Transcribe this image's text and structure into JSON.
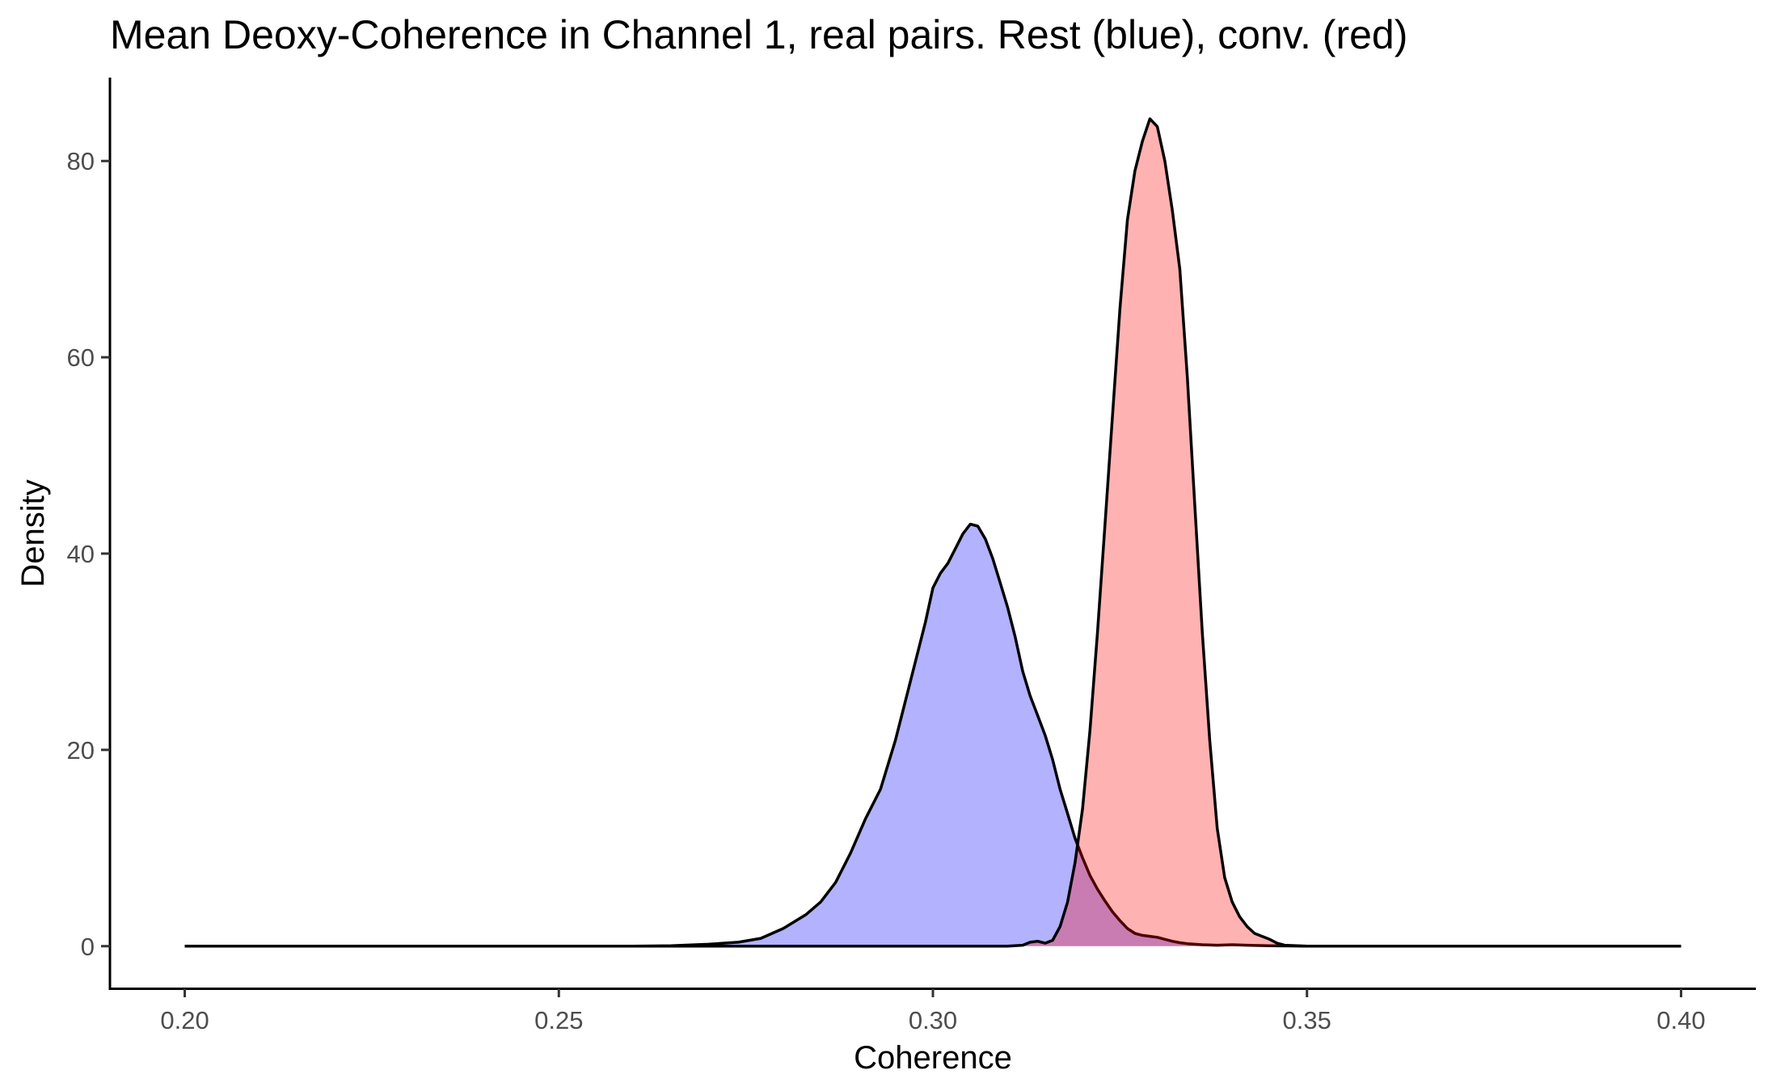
{
  "chart_data": {
    "type": "area",
    "title": "Mean Deoxy-Coherence in Channel 1, real pairs. Rest (blue), conv. (red)",
    "xlabel": "Coherence",
    "ylabel": "Density",
    "xlim": [
      0.19,
      0.41
    ],
    "ylim": [
      -4.3,
      88.5
    ],
    "xticks": [
      {
        "value": 0.2,
        "label": "0.20"
      },
      {
        "value": 0.25,
        "label": "0.25"
      },
      {
        "value": 0.3,
        "label": "0.30"
      },
      {
        "value": 0.35,
        "label": "0.35"
      },
      {
        "value": 0.4,
        "label": "0.40"
      }
    ],
    "yticks": [
      {
        "value": 0,
        "label": "0"
      },
      {
        "value": 20,
        "label": "20"
      },
      {
        "value": 40,
        "label": "40"
      },
      {
        "value": 60,
        "label": "60"
      },
      {
        "value": 80,
        "label": "80"
      }
    ],
    "grid": false,
    "legend": "none",
    "series": [
      {
        "color": "#0000ff",
        "fill_opacity": 0.3,
        "points": [
          [
            0.2,
            0.0
          ],
          [
            0.22,
            0.0
          ],
          [
            0.24,
            0.0
          ],
          [
            0.26,
            0.0
          ],
          [
            0.265,
            0.05
          ],
          [
            0.27,
            0.2
          ],
          [
            0.274,
            0.4
          ],
          [
            0.277,
            0.8
          ],
          [
            0.28,
            1.8
          ],
          [
            0.283,
            3.2
          ],
          [
            0.285,
            4.5
          ],
          [
            0.287,
            6.5
          ],
          [
            0.289,
            9.5
          ],
          [
            0.291,
            13.0
          ],
          [
            0.293,
            16.0
          ],
          [
            0.295,
            21.0
          ],
          [
            0.297,
            27.0
          ],
          [
            0.299,
            33.0
          ],
          [
            0.3,
            36.5
          ],
          [
            0.301,
            38.0
          ],
          [
            0.302,
            39.0
          ],
          [
            0.303,
            40.5
          ],
          [
            0.304,
            42.0
          ],
          [
            0.305,
            43.0
          ],
          [
            0.306,
            42.8
          ],
          [
            0.307,
            41.5
          ],
          [
            0.308,
            39.5
          ],
          [
            0.309,
            37.0
          ],
          [
            0.31,
            34.5
          ],
          [
            0.311,
            31.5
          ],
          [
            0.312,
            28.0
          ],
          [
            0.313,
            25.5
          ],
          [
            0.314,
            23.5
          ],
          [
            0.315,
            21.5
          ],
          [
            0.316,
            19.0
          ],
          [
            0.317,
            16.0
          ],
          [
            0.318,
            13.5
          ],
          [
            0.319,
            11.0
          ],
          [
            0.32,
            9.0
          ],
          [
            0.321,
            7.2
          ],
          [
            0.322,
            5.8
          ],
          [
            0.323,
            4.6
          ],
          [
            0.324,
            3.5
          ],
          [
            0.325,
            2.6
          ],
          [
            0.326,
            1.8
          ],
          [
            0.327,
            1.3
          ],
          [
            0.328,
            1.1
          ],
          [
            0.329,
            1.0
          ],
          [
            0.33,
            0.9
          ],
          [
            0.331,
            0.7
          ],
          [
            0.332,
            0.5
          ],
          [
            0.333,
            0.35
          ],
          [
            0.334,
            0.25
          ],
          [
            0.336,
            0.15
          ],
          [
            0.338,
            0.1
          ],
          [
            0.34,
            0.15
          ],
          [
            0.342,
            0.1
          ],
          [
            0.345,
            0.05
          ],
          [
            0.35,
            0.0
          ],
          [
            0.37,
            0.0
          ],
          [
            0.4,
            0.0
          ]
        ]
      },
      {
        "color": "#ff0000",
        "fill_opacity": 0.3,
        "points": [
          [
            0.2,
            0.0
          ],
          [
            0.25,
            0.0
          ],
          [
            0.3,
            0.0
          ],
          [
            0.31,
            0.0
          ],
          [
            0.312,
            0.1
          ],
          [
            0.313,
            0.4
          ],
          [
            0.314,
            0.5
          ],
          [
            0.315,
            0.3
          ],
          [
            0.316,
            0.6
          ],
          [
            0.317,
            2.0
          ],
          [
            0.318,
            4.5
          ],
          [
            0.319,
            8.5
          ],
          [
            0.32,
            14.0
          ],
          [
            0.321,
            22.0
          ],
          [
            0.322,
            32.0
          ],
          [
            0.323,
            43.0
          ],
          [
            0.324,
            54.0
          ],
          [
            0.325,
            65.0
          ],
          [
            0.326,
            74.0
          ],
          [
            0.327,
            79.0
          ],
          [
            0.328,
            82.0
          ],
          [
            0.329,
            84.3
          ],
          [
            0.33,
            83.5
          ],
          [
            0.331,
            80.0
          ],
          [
            0.332,
            75.0
          ],
          [
            0.333,
            69.0
          ],
          [
            0.334,
            58.0
          ],
          [
            0.335,
            45.0
          ],
          [
            0.336,
            32.0
          ],
          [
            0.337,
            21.0
          ],
          [
            0.338,
            12.0
          ],
          [
            0.339,
            7.0
          ],
          [
            0.34,
            4.5
          ],
          [
            0.341,
            3.0
          ],
          [
            0.342,
            2.0
          ],
          [
            0.343,
            1.3
          ],
          [
            0.344,
            1.0
          ],
          [
            0.345,
            0.7
          ],
          [
            0.346,
            0.3
          ],
          [
            0.347,
            0.1
          ],
          [
            0.35,
            0.0
          ],
          [
            0.37,
            0.0
          ],
          [
            0.4,
            0.0
          ]
        ]
      }
    ]
  }
}
